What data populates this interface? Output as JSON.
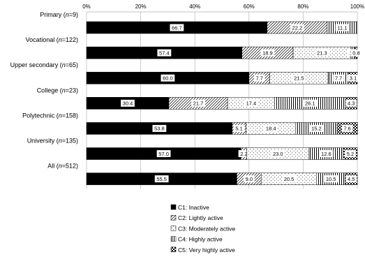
{
  "chart_data": {
    "type": "bar",
    "orientation": "horizontal",
    "stacked": true,
    "title": "",
    "xlabel": "",
    "ylabel": "",
    "xlim": [
      0,
      100
    ],
    "ticks": [
      "0%",
      "20%",
      "40%",
      "60%",
      "80%",
      "100%"
    ],
    "tick_values": [
      0,
      20,
      40,
      60,
      80,
      100
    ],
    "grid": true,
    "legend_position": "bottom",
    "categories": [
      {
        "name": "Primary",
        "n": "9"
      },
      {
        "name": "Vocational",
        "n": "122"
      },
      {
        "name": "Upper secondary",
        "n": "65"
      },
      {
        "name": "College",
        "n": "23"
      },
      {
        "name": "Polytechnic",
        "n": "158"
      },
      {
        "name": "University",
        "n": "135"
      },
      {
        "name": "All",
        "n": "512"
      }
    ],
    "series": [
      {
        "name": "C1: Inactive",
        "pattern": "solid",
        "values": [
          66.7,
          57.4,
          60.0,
          30.4,
          53.8,
          57.0,
          55.5
        ],
        "labels": [
          "66.7",
          "57.4",
          "60.0",
          "30.4",
          "53.8",
          "57.0",
          "55.5"
        ]
      },
      {
        "name": "C2: Lightly active",
        "pattern": "diagonal",
        "values": [
          22.2,
          18.9,
          7.7,
          21.7,
          5.1,
          2.2,
          9.0
        ],
        "labels": [
          "22.2",
          "18.9",
          "7.7",
          "21.7",
          "5.1",
          "2.2",
          "9.0"
        ]
      },
      {
        "name": "C3: Moderately active",
        "pattern": "dots",
        "values": [
          0,
          21.3,
          21.5,
          17.4,
          18.4,
          23.0,
          20.5
        ],
        "labels": [
          "",
          "21.3",
          "21.5",
          "17.4",
          "18.4",
          "23.0",
          "20.5"
        ]
      },
      {
        "name": "C4: Highly active",
        "pattern": "vertical",
        "values": [
          11.1,
          1.6,
          7.7,
          26.1,
          15.2,
          12.6,
          10.5
        ],
        "labels": [
          "11.1",
          "1.6",
          "7.7",
          "26.1",
          "15.2",
          "12.6",
          "10.5"
        ]
      },
      {
        "name": "C5: Very highly active",
        "pattern": "checker",
        "values": [
          0,
          0.8,
          3.1,
          4.3,
          7.6,
          5.2,
          4.5
        ],
        "labels": [
          "",
          "0.8",
          "3.1",
          "4.3",
          "7.6",
          "5.2",
          "4.5"
        ]
      }
    ]
  },
  "colors": {
    "fill": "#000000",
    "background": "#ffffff",
    "grid": "#aaaaaa"
  }
}
